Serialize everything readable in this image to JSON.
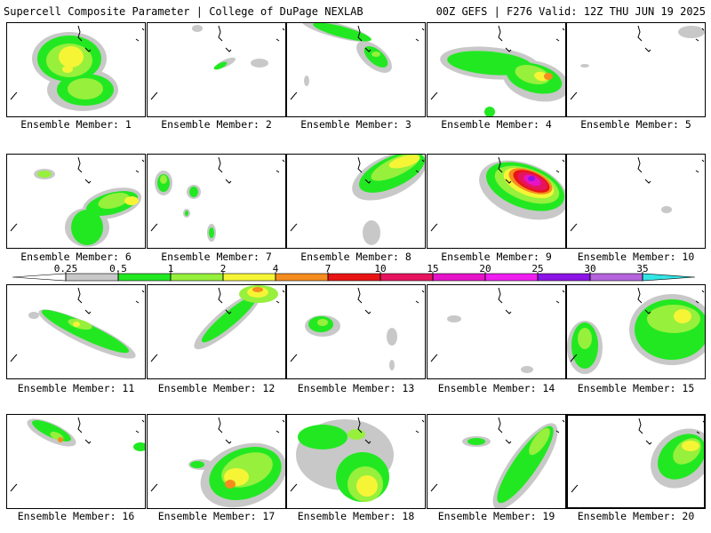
{
  "header": {
    "title": "Supercell Composite Parameter | College of DuPage NEXLAB",
    "run_info": "00Z GEFS | F276 Valid: 12Z THU JUN 19 2025"
  },
  "panel_label_prefix": "Ensemble Member:",
  "panels": [
    {
      "member": 1,
      "label": "Ensemble Member: 1"
    },
    {
      "member": 2,
      "label": "Ensemble Member: 2"
    },
    {
      "member": 3,
      "label": "Ensemble Member: 3"
    },
    {
      "member": 4,
      "label": "Ensemble Member: 4"
    },
    {
      "member": 5,
      "label": "Ensemble Member: 5"
    },
    {
      "member": 6,
      "label": "Ensemble Member: 6"
    },
    {
      "member": 7,
      "label": "Ensemble Member: 7"
    },
    {
      "member": 8,
      "label": "Ensemble Member: 8"
    },
    {
      "member": 9,
      "label": "Ensemble Member: 9"
    },
    {
      "member": 10,
      "label": "Ensemble Member: 10"
    },
    {
      "member": 11,
      "label": "Ensemble Member: 11"
    },
    {
      "member": 12,
      "label": "Ensemble Member: 12"
    },
    {
      "member": 13,
      "label": "Ensemble Member: 13"
    },
    {
      "member": 14,
      "label": "Ensemble Member: 14"
    },
    {
      "member": 15,
      "label": "Ensemble Member: 15"
    },
    {
      "member": 16,
      "label": "Ensemble Member: 16"
    },
    {
      "member": 17,
      "label": "Ensemble Member: 17"
    },
    {
      "member": 18,
      "label": "Ensemble Member: 18"
    },
    {
      "member": 19,
      "label": "Ensemble Member: 19"
    },
    {
      "member": 20,
      "label": "Ensemble Member: 20"
    }
  ],
  "selected_member": 20,
  "colorbar": {
    "ticks": [
      "0.25",
      "0.5",
      "1",
      "2",
      "4",
      "7",
      "10",
      "15",
      "20",
      "25",
      "30",
      "35"
    ],
    "colors": [
      "#c8c8c8",
      "#22e822",
      "#96f03c",
      "#f5f536",
      "#f58c1e",
      "#e81414",
      "#e6145f",
      "#e614c8",
      "#f01ef0",
      "#8c14e6",
      "#b464dc",
      "#32e6e6"
    ]
  },
  "field_colors": {
    "gray": "#c8c8c8",
    "green": "#22e822",
    "lime": "#96f03c",
    "yellow": "#f5f536",
    "orange": "#f58c1e",
    "red": "#e81414",
    "crimson": "#e6145f",
    "magenta": "#e614c8",
    "violet": "#8c14e6"
  }
}
